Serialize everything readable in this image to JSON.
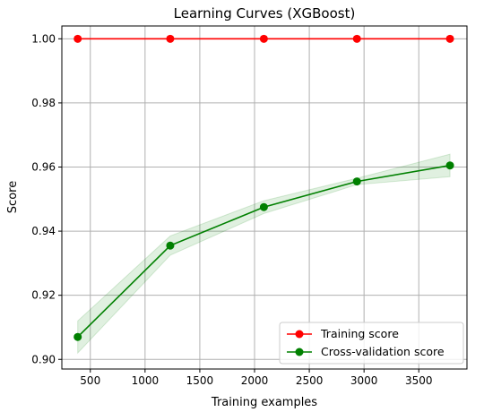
{
  "chart_data": {
    "type": "line",
    "title": "Learning Curves (XGBoost)",
    "xlabel": "Training examples",
    "ylabel": "Score",
    "xlim": [
      240,
      3940
    ],
    "ylim": [
      0.897,
      1.004
    ],
    "xticks": [
      500,
      1000,
      1500,
      2000,
      2500,
      3000,
      3500
    ],
    "xtick_labels": [
      "500",
      "1000",
      "1500",
      "2000",
      "2500",
      "3000",
      "3500"
    ],
    "yticks": [
      0.9,
      0.92,
      0.94,
      0.96,
      0.98,
      1.0
    ],
    "ytick_labels": [
      "0.90",
      "0.92",
      "0.94",
      "0.96",
      "0.98",
      "1.00"
    ],
    "grid": true,
    "legend_position": "lower-right",
    "x": [
      385,
      1230,
      2085,
      2935,
      3785
    ],
    "series": [
      {
        "name": "Training score",
        "color": "#ff0000",
        "values": [
          1.0,
          1.0,
          1.0,
          1.0,
          1.0
        ],
        "band_lower": [
          1.0,
          1.0,
          1.0,
          1.0,
          1.0
        ],
        "band_upper": [
          1.0,
          1.0,
          1.0,
          1.0,
          1.0
        ]
      },
      {
        "name": "Cross-validation score",
        "color": "#008000",
        "values": [
          0.907,
          0.9355,
          0.9475,
          0.9555,
          0.9605
        ],
        "band_lower": [
          0.902,
          0.9325,
          0.9455,
          0.9545,
          0.957
        ],
        "band_upper": [
          0.912,
          0.9385,
          0.9495,
          0.9565,
          0.964
        ]
      }
    ]
  }
}
